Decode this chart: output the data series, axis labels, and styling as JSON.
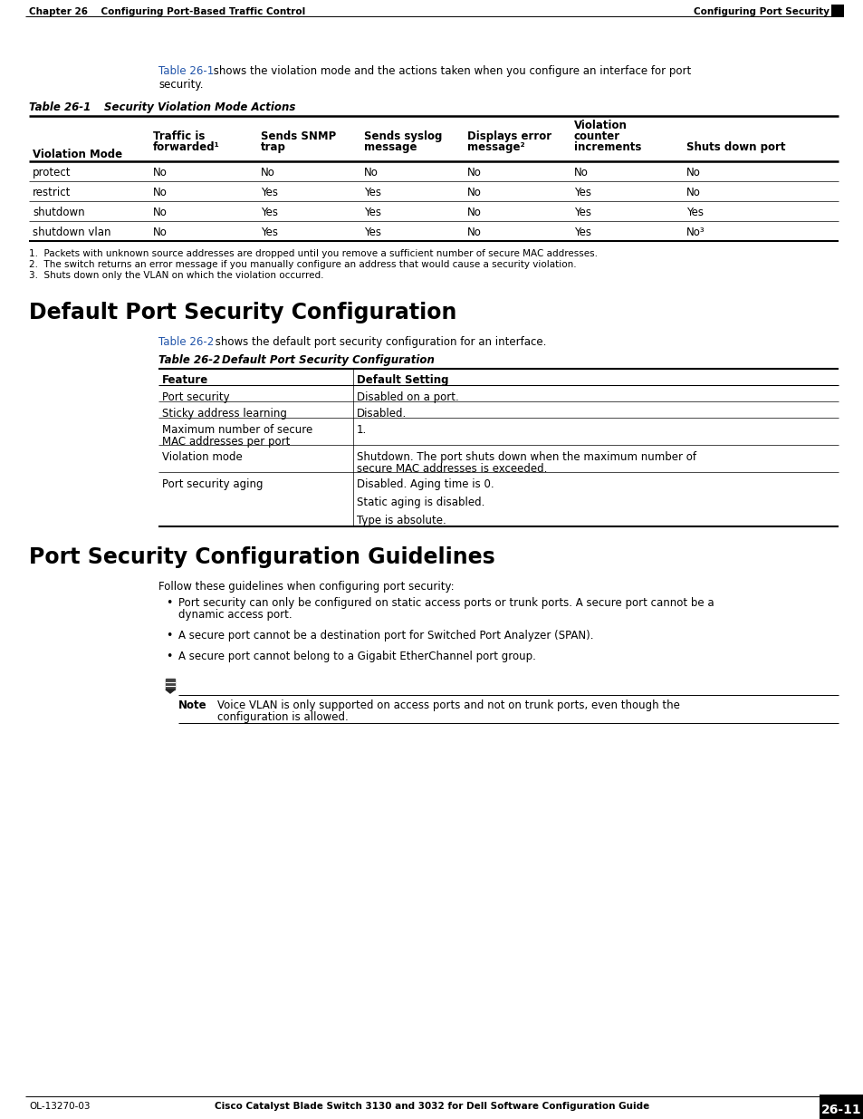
{
  "page_bg": "#ffffff",
  "header_left": "Chapter 26    Configuring Port-Based Traffic Control",
  "header_right": "Configuring Port Security",
  "footer_left": "OL-13270-03",
  "footer_center": "Cisco Catalyst Blade Switch 3130 and 3032 for Dell Software Configuration Guide",
  "footer_right": "26-11",
  "link_color": "#2255aa",
  "text_color": "#000000"
}
